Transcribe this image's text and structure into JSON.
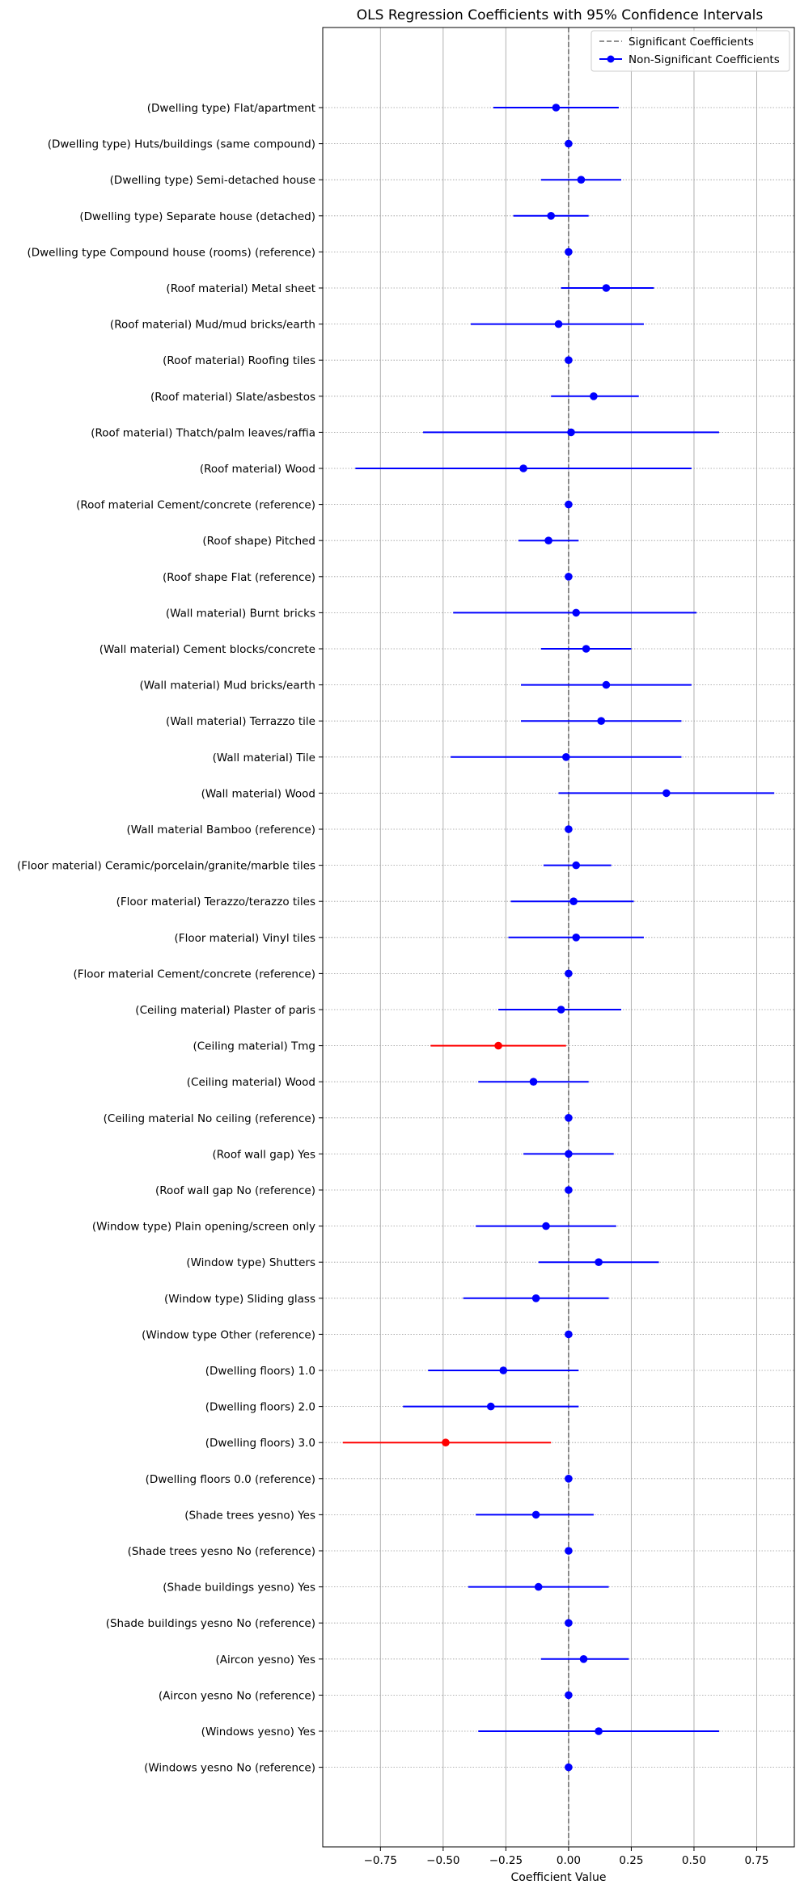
{
  "chart_data": {
    "type": "scatter",
    "title": "OLS Regression Coefficients with 95% Confidence Intervals",
    "xlabel": "Coefficient Value",
    "ylabel": "",
    "xlim": [
      -0.98,
      0.9
    ],
    "xticks": [
      -0.75,
      -0.5,
      -0.25,
      0.0,
      0.25,
      0.5,
      0.75
    ],
    "xtick_labels": [
      "−0.75",
      "−0.50",
      "−0.25",
      "0.00",
      "0.25",
      "0.50",
      "0.75"
    ],
    "grid": {
      "vertical": true,
      "horizontal_dotted": true
    },
    "reference_line": {
      "x": 0,
      "style": "dashed"
    },
    "legend": {
      "placement": "top-right",
      "entries": [
        "Significant Coefficients",
        "Non-Significant Coefficients"
      ]
    },
    "colors": {
      "significant": "#ff0000",
      "non_significant": "#0000ff",
      "reference": "#808080"
    },
    "series": [
      {
        "name": "Non-Significant Coefficients",
        "color": "#0000ff"
      },
      {
        "name": "Significant Coefficients",
        "color": "#ff0000"
      }
    ],
    "coefficients": [
      {
        "label": "(Dwelling type) Flat/apartment",
        "estimate": -0.05,
        "lower": -0.3,
        "upper": 0.2,
        "significant": false
      },
      {
        "label": "(Dwelling type) Huts/buildings (same compound)",
        "estimate": 0.0,
        "lower": 0.0,
        "upper": 0.0,
        "significant": false
      },
      {
        "label": "(Dwelling type) Semi-detached house",
        "estimate": 0.05,
        "lower": -0.11,
        "upper": 0.21,
        "significant": false
      },
      {
        "label": "(Dwelling type) Separate house (detached)",
        "estimate": -0.07,
        "lower": -0.22,
        "upper": 0.08,
        "significant": false
      },
      {
        "label": "(Dwelling type Compound house (rooms) (reference)",
        "estimate": 0.0,
        "lower": 0.0,
        "upper": 0.0,
        "significant": false
      },
      {
        "label": "(Roof material) Metal sheet",
        "estimate": 0.15,
        "lower": -0.03,
        "upper": 0.34,
        "significant": false
      },
      {
        "label": "(Roof material) Mud/mud bricks/earth",
        "estimate": -0.04,
        "lower": -0.39,
        "upper": 0.3,
        "significant": false
      },
      {
        "label": "(Roof material) Roofing tiles",
        "estimate": 0.0,
        "lower": 0.0,
        "upper": 0.0,
        "significant": false
      },
      {
        "label": "(Roof material) Slate/asbestos",
        "estimate": 0.1,
        "lower": -0.07,
        "upper": 0.28,
        "significant": false
      },
      {
        "label": "(Roof material) Thatch/palm leaves/raffia",
        "estimate": 0.01,
        "lower": -0.58,
        "upper": 0.6,
        "significant": false
      },
      {
        "label": "(Roof material) Wood",
        "estimate": -0.18,
        "lower": -0.85,
        "upper": 0.49,
        "significant": false
      },
      {
        "label": "(Roof material Cement/concrete (reference)",
        "estimate": 0.0,
        "lower": 0.0,
        "upper": 0.0,
        "significant": false
      },
      {
        "label": "(Roof shape) Pitched",
        "estimate": -0.08,
        "lower": -0.2,
        "upper": 0.04,
        "significant": false
      },
      {
        "label": "(Roof shape Flat (reference)",
        "estimate": 0.0,
        "lower": 0.0,
        "upper": 0.0,
        "significant": false
      },
      {
        "label": "(Wall material) Burnt bricks",
        "estimate": 0.03,
        "lower": -0.46,
        "upper": 0.51,
        "significant": false
      },
      {
        "label": "(Wall material) Cement blocks/concrete",
        "estimate": 0.07,
        "lower": -0.11,
        "upper": 0.25,
        "significant": false
      },
      {
        "label": "(Wall material) Mud bricks/earth",
        "estimate": 0.15,
        "lower": -0.19,
        "upper": 0.49,
        "significant": false
      },
      {
        "label": "(Wall material) Terrazzo tile",
        "estimate": 0.13,
        "lower": -0.19,
        "upper": 0.45,
        "significant": false
      },
      {
        "label": "(Wall material) Tile",
        "estimate": -0.01,
        "lower": -0.47,
        "upper": 0.45,
        "significant": false
      },
      {
        "label": "(Wall material) Wood",
        "estimate": 0.39,
        "lower": -0.04,
        "upper": 0.82,
        "significant": false
      },
      {
        "label": "(Wall material Bamboo (reference)",
        "estimate": 0.0,
        "lower": 0.0,
        "upper": 0.0,
        "significant": false
      },
      {
        "label": "(Floor material) Ceramic/porcelain/granite/marble tiles",
        "estimate": 0.03,
        "lower": -0.1,
        "upper": 0.17,
        "significant": false
      },
      {
        "label": "(Floor material) Terazzo/terazzo tiles",
        "estimate": 0.02,
        "lower": -0.23,
        "upper": 0.26,
        "significant": false
      },
      {
        "label": "(Floor material) Vinyl tiles",
        "estimate": 0.03,
        "lower": -0.24,
        "upper": 0.3,
        "significant": false
      },
      {
        "label": "(Floor material Cement/concrete (reference)",
        "estimate": 0.0,
        "lower": 0.0,
        "upper": 0.0,
        "significant": false
      },
      {
        "label": "(Ceiling material) Plaster of paris",
        "estimate": -0.03,
        "lower": -0.28,
        "upper": 0.21,
        "significant": false
      },
      {
        "label": "(Ceiling material) Tmg",
        "estimate": -0.28,
        "lower": -0.55,
        "upper": -0.01,
        "significant": true
      },
      {
        "label": "(Ceiling material) Wood",
        "estimate": -0.14,
        "lower": -0.36,
        "upper": 0.08,
        "significant": false
      },
      {
        "label": "(Ceiling material No ceiling (reference)",
        "estimate": 0.0,
        "lower": 0.0,
        "upper": 0.0,
        "significant": false
      },
      {
        "label": "(Roof wall gap) Yes",
        "estimate": 0.0,
        "lower": -0.18,
        "upper": 0.18,
        "significant": false
      },
      {
        "label": "(Roof wall gap No (reference)",
        "estimate": 0.0,
        "lower": 0.0,
        "upper": 0.0,
        "significant": false
      },
      {
        "label": "(Window type) Plain opening/screen only",
        "estimate": -0.09,
        "lower": -0.37,
        "upper": 0.19,
        "significant": false
      },
      {
        "label": "(Window type) Shutters",
        "estimate": 0.12,
        "lower": -0.12,
        "upper": 0.36,
        "significant": false
      },
      {
        "label": "(Window type) Sliding glass",
        "estimate": -0.13,
        "lower": -0.42,
        "upper": 0.16,
        "significant": false
      },
      {
        "label": "(Window type Other (reference)",
        "estimate": 0.0,
        "lower": 0.0,
        "upper": 0.0,
        "significant": false
      },
      {
        "label": "(Dwelling floors) 1.0",
        "estimate": -0.26,
        "lower": -0.56,
        "upper": 0.04,
        "significant": false
      },
      {
        "label": "(Dwelling floors) 2.0",
        "estimate": -0.31,
        "lower": -0.66,
        "upper": 0.04,
        "significant": false
      },
      {
        "label": "(Dwelling floors) 3.0",
        "estimate": -0.49,
        "lower": -0.9,
        "upper": -0.07,
        "significant": true
      },
      {
        "label": "(Dwelling floors 0.0 (reference)",
        "estimate": 0.0,
        "lower": 0.0,
        "upper": 0.0,
        "significant": false
      },
      {
        "label": "(Shade trees yesno) Yes",
        "estimate": -0.13,
        "lower": -0.37,
        "upper": 0.1,
        "significant": false
      },
      {
        "label": "(Shade trees yesno No (reference)",
        "estimate": 0.0,
        "lower": 0.0,
        "upper": 0.0,
        "significant": false
      },
      {
        "label": "(Shade buildings yesno) Yes",
        "estimate": -0.12,
        "lower": -0.4,
        "upper": 0.16,
        "significant": false
      },
      {
        "label": "(Shade buildings yesno No (reference)",
        "estimate": 0.0,
        "lower": 0.0,
        "upper": 0.0,
        "significant": false
      },
      {
        "label": "(Aircon yesno) Yes",
        "estimate": 0.06,
        "lower": -0.11,
        "upper": 0.24,
        "significant": false
      },
      {
        "label": "(Aircon yesno No (reference)",
        "estimate": 0.0,
        "lower": 0.0,
        "upper": 0.0,
        "significant": false
      },
      {
        "label": "(Windows yesno) Yes",
        "estimate": 0.12,
        "lower": -0.36,
        "upper": 0.6,
        "significant": false
      },
      {
        "label": "(Windows yesno No (reference)",
        "estimate": 0.0,
        "lower": 0.0,
        "upper": 0.0,
        "significant": false
      }
    ]
  }
}
